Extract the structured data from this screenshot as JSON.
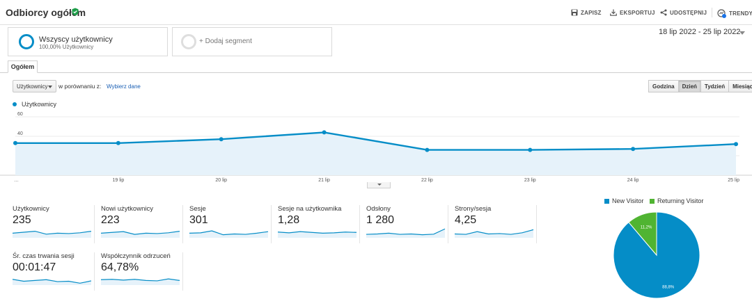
{
  "header": {
    "title": "Odbiorcy ogółem",
    "actions": [
      "ZAPISZ",
      "EKSPORTUJ",
      "UDOSTĘPNIJ",
      "TRENDY"
    ]
  },
  "segments": {
    "active_name": "Wszyscy użytkownicy",
    "active_sub": "100,00% Użytkownicy",
    "add_label": "+ Dodaj segment"
  },
  "date_range": "18 lip 2022 - 25 lip 2022",
  "tab": "Ogółem",
  "controls": {
    "metric": "Użytkownicy",
    "compare_label": "w porównaniu z:",
    "compare_link": "Wybierz dane",
    "granularity": [
      "Godzina",
      "Dzień",
      "Tydzień",
      "Miesiąc"
    ],
    "granularity_selected": "Dzień"
  },
  "colors": {
    "series": "#058dc7",
    "returning": "#50b432",
    "fill": "#e6f2fa"
  },
  "chart_data": [
    {
      "type": "area",
      "series": [
        {
          "name": "Użytkownicy",
          "values": [
            33,
            33,
            37,
            44,
            26,
            26,
            27,
            32
          ]
        }
      ],
      "categories": [
        "…",
        "19 lip",
        "20 lip",
        "21 lip",
        "22 lip",
        "23 lip",
        "24 lip",
        "25 lip"
      ],
      "yticks": [
        20,
        40,
        60
      ],
      "ylim": [
        0,
        60
      ],
      "grid": true,
      "legend": "top-left"
    },
    {
      "type": "pie",
      "categories": [
        "New Visitor",
        "Returning Visitor"
      ],
      "values": [
        88.8,
        11.2
      ],
      "labels": [
        "88,8%",
        "11,2%"
      ],
      "colors": [
        "#058dc7",
        "#50b432"
      ],
      "legend": "top"
    }
  ],
  "scorecards": [
    {
      "label": "Użytkownicy",
      "value": "235",
      "spark": [
        5,
        5.5,
        6,
        4.5,
        5,
        4.8,
        5.2,
        6
      ]
    },
    {
      "label": "Nowi użytkownicy",
      "value": "223",
      "spark": [
        5,
        5.4,
        5.8,
        4.4,
        5,
        4.8,
        5.2,
        6
      ]
    },
    {
      "label": "Sesje",
      "value": "301",
      "spark": [
        5,
        5.2,
        6.2,
        4.2,
        4.6,
        4.4,
        5,
        5.8
      ]
    },
    {
      "label": "Sesje na użytkownika",
      "value": "1,28",
      "spark": [
        5.6,
        5.2,
        5.8,
        5.4,
        5.0,
        5.2,
        5.6,
        5.4
      ]
    },
    {
      "label": "Odsłony",
      "value": "1 280",
      "spark": [
        4.4,
        4.6,
        5,
        4.4,
        4.6,
        4.2,
        4.5,
        7.2
      ]
    },
    {
      "label": "Strony/sesja",
      "value": "4,25",
      "spark": [
        4.6,
        4.4,
        5.8,
        4.6,
        4.8,
        4.4,
        5.2,
        6.8
      ]
    },
    {
      "label": "Śr. czas trwania sesji",
      "value": "00:01:47",
      "spark": [
        5.6,
        4.6,
        5.0,
        5.4,
        4.4,
        4.6,
        3.6,
        4.8
      ]
    },
    {
      "label": "Współczynnik odrzuceń",
      "value": "64,78%",
      "spark": [
        5.4,
        5.6,
        5.2,
        5.6,
        5.0,
        4.8,
        5.8,
        5.0
      ]
    }
  ]
}
